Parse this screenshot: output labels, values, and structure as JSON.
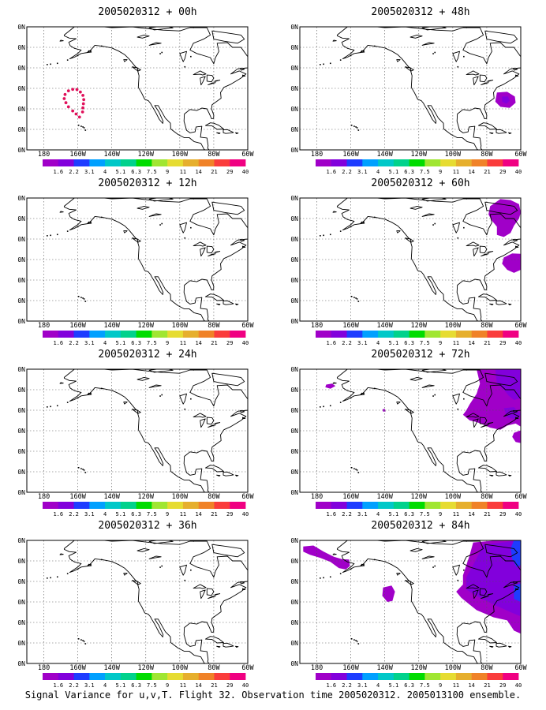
{
  "panels": [
    {
      "title": "2005020312 + 00h",
      "field": "h00"
    },
    {
      "title": "2005020312 + 48h",
      "field": "h48"
    },
    {
      "title": "2005020312 + 12h",
      "field": "none"
    },
    {
      "title": "2005020312 + 60h",
      "field": "h60"
    },
    {
      "title": "2005020312 + 24h",
      "field": "none"
    },
    {
      "title": "2005020312 + 72h",
      "field": "h72"
    },
    {
      "title": "2005020312 + 36h",
      "field": "none"
    },
    {
      "title": "2005020312 + 84h",
      "field": "h84"
    }
  ],
  "lat_labels": [
    "70N",
    "60N",
    "50N",
    "40N",
    "30N",
    "20N",
    "10N"
  ],
  "lon_labels": [
    "180",
    "160W",
    "140W",
    "120W",
    "100W",
    "80W",
    "60W"
  ],
  "colorbar": {
    "labels": [
      "1.6",
      "2.2",
      "3.1",
      "4",
      "5.1",
      "6.3",
      "7.5",
      "9",
      "11",
      "14",
      "21",
      "29",
      "40"
    ],
    "colors": [
      "#a000c8",
      "#8200dc",
      "#1e3cff",
      "#00a0ff",
      "#00c8c8",
      "#00d28c",
      "#00dc00",
      "#a0e632",
      "#e6dc32",
      "#e6af2d",
      "#f08228",
      "#fa3c3c",
      "#f00082"
    ]
  },
  "caption": "Signal Variance for u,v,T. Flight 32. Observation time 2005020312. 2005013100 ensemble."
}
